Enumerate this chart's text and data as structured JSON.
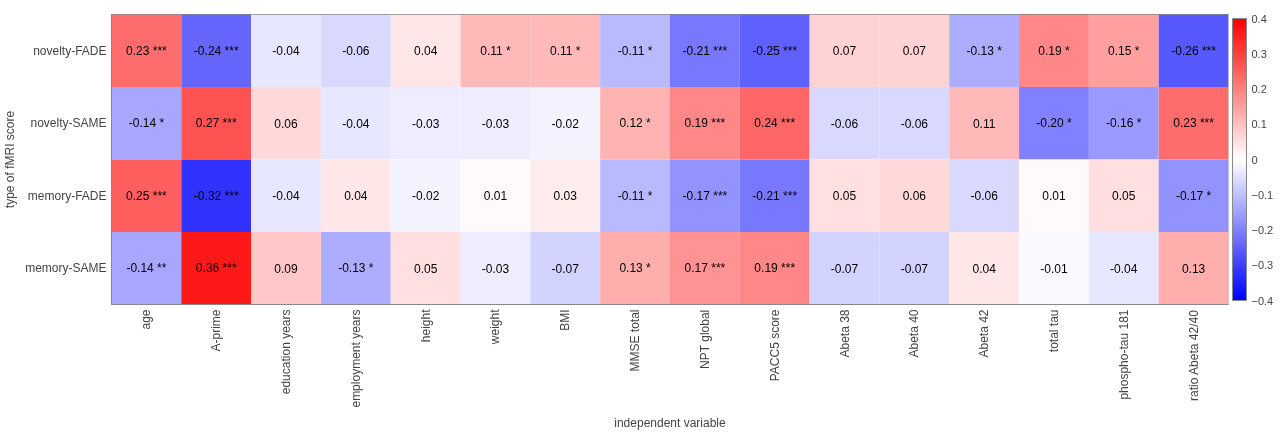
{
  "chart_data": {
    "type": "heatmap",
    "xlabel": "independent variable",
    "ylabel": "type of fMRI score",
    "categories": [
      "age",
      "A-prime",
      "education years",
      "employment years",
      "height",
      "weight",
      "BMI",
      "MMSE total",
      "NPT global",
      "PACC5 score",
      "Abeta 38",
      "Abeta 40",
      "Abeta 42",
      "total tau",
      "phospho-tau 181",
      "ratio Abeta 42/40"
    ],
    "y_categories": [
      "novelty-FADE",
      "novelty-SAME",
      "memory-FADE",
      "memory-SAME"
    ],
    "cells": [
      [
        0.23,
        -0.24,
        -0.04,
        -0.06,
        0.04,
        0.11,
        0.11,
        -0.11,
        -0.21,
        -0.25,
        0.07,
        0.07,
        -0.13,
        0.19,
        0.15,
        -0.26
      ],
      [
        -0.14,
        0.27,
        0.06,
        -0.04,
        -0.03,
        -0.03,
        -0.02,
        0.12,
        0.19,
        0.24,
        -0.06,
        -0.06,
        0.11,
        -0.2,
        -0.16,
        0.23
      ],
      [
        0.25,
        -0.32,
        -0.04,
        0.04,
        -0.02,
        0.01,
        0.03,
        -0.11,
        -0.17,
        -0.21,
        0.05,
        0.06,
        -0.06,
        0.01,
        0.05,
        -0.17
      ],
      [
        -0.14,
        0.36,
        0.09,
        -0.13,
        0.05,
        -0.03,
        -0.07,
        0.13,
        0.17,
        0.19,
        -0.07,
        -0.07,
        0.04,
        -0.01,
        -0.04,
        0.13
      ]
    ],
    "cell_labels": [
      [
        "0.23 ***",
        "-0.24 ***",
        "-0.04",
        "-0.06",
        "0.04",
        "0.11 *",
        "0.11 *",
        "-0.11 *",
        "-0.21 ***",
        "-0.25 ***",
        "0.07",
        "0.07",
        "-0.13 *",
        "0.19 *",
        "0.15 *",
        "-0.26 ***"
      ],
      [
        "-0.14 *",
        "0.27 ***",
        "0.06",
        "-0.04",
        "-0.03",
        "-0.03",
        "-0.02",
        "0.12 *",
        "0.19 ***",
        "0.24 ***",
        "-0.06",
        "-0.06",
        "0.11",
        "-0.20 *",
        "-0.16 *",
        "0.23 ***"
      ],
      [
        "0.25 ***",
        "-0.32 ***",
        "-0.04",
        "0.04",
        "-0.02",
        "0.01",
        "0.03",
        "-0.11 *",
        "-0.17 ***",
        "-0.21 ***",
        "0.05",
        "0.06",
        "-0.06",
        "0.01",
        "0.05",
        "-0.17 *"
      ],
      [
        "-0.14 **",
        "0.36 ***",
        "0.09",
        "-0.13 *",
        "0.05",
        "-0.03",
        "-0.07",
        "0.13 *",
        "0.17 ***",
        "0.19 ***",
        "-0.07",
        "-0.07",
        "0.04",
        "-0.01",
        "-0.04",
        "0.13"
      ]
    ],
    "clim": [
      -0.4,
      0.4
    ],
    "cticks": [
      -0.4,
      -0.3,
      -0.2,
      -0.1,
      0,
      0.1,
      0.2,
      0.3,
      0.4
    ]
  }
}
